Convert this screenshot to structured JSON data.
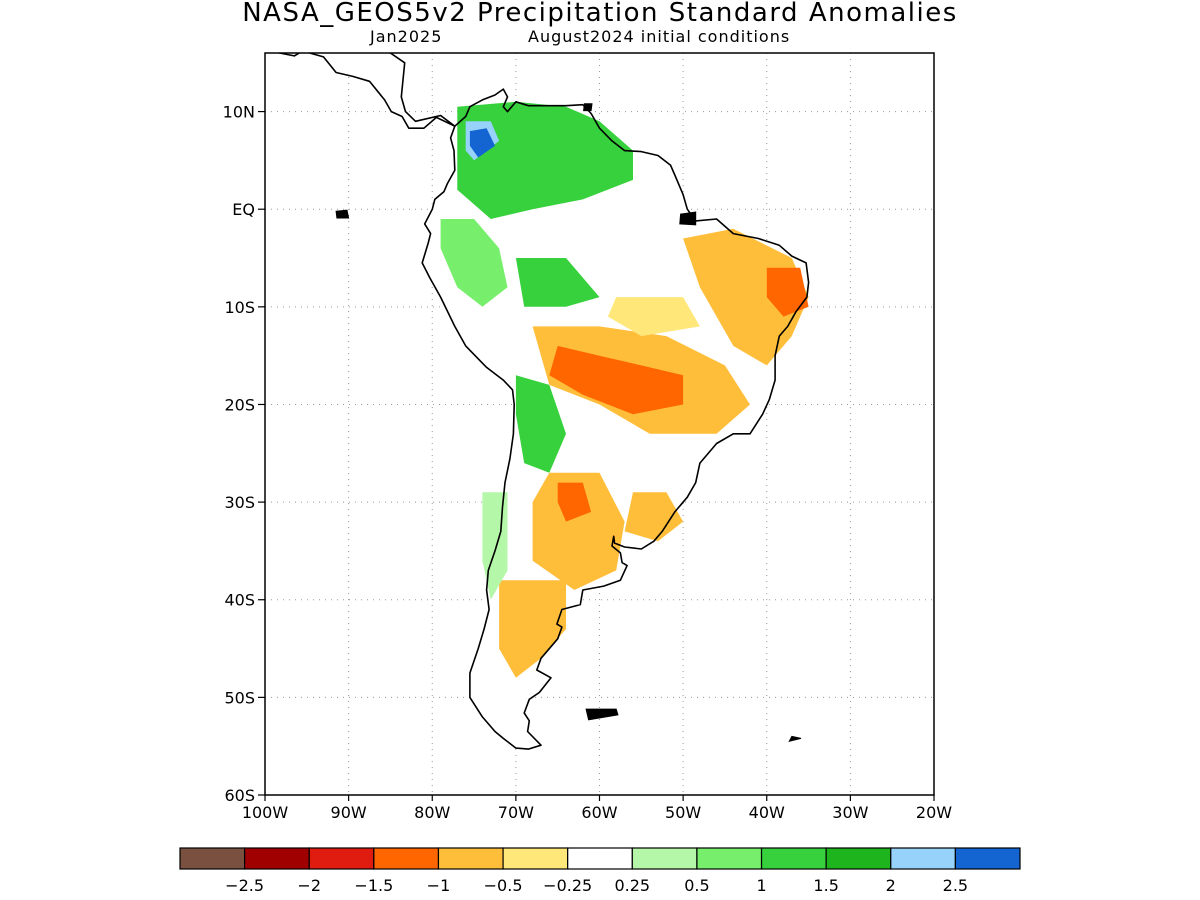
{
  "header": {
    "title": "NASA_GEOS5v2 Precipitation Standard Anomalies",
    "target_month": "Jan2025",
    "initial_conditions": "August2024 initial conditions"
  },
  "map": {
    "region": "South America",
    "lat_range": [
      -60,
      16
    ],
    "lon_range": [
      -100,
      -20
    ],
    "lat_ticks": [
      {
        "value": 10,
        "label": "10N"
      },
      {
        "value": 0,
        "label": "EQ"
      },
      {
        "value": -10,
        "label": "10S"
      },
      {
        "value": -20,
        "label": "20S"
      },
      {
        "value": -30,
        "label": "30S"
      },
      {
        "value": -40,
        "label": "40S"
      },
      {
        "value": -50,
        "label": "50S"
      },
      {
        "value": -60,
        "label": "60S"
      }
    ],
    "lon_ticks": [
      {
        "value": -100,
        "label": "100W"
      },
      {
        "value": -90,
        "label": "90W"
      },
      {
        "value": -80,
        "label": "80W"
      },
      {
        "value": -70,
        "label": "70W"
      },
      {
        "value": -60,
        "label": "60W"
      },
      {
        "value": -50,
        "label": "50W"
      },
      {
        "value": -40,
        "label": "40W"
      },
      {
        "value": -30,
        "label": "30W"
      },
      {
        "value": -20,
        "label": "20W"
      }
    ],
    "grid": "dotted"
  },
  "colorbar": {
    "colors": [
      "#7a5040",
      "#a00000",
      "#e01c10",
      "#ff6600",
      "#ffbe3a",
      "#ffe77a",
      "#ffffff",
      "#b4f7a8",
      "#78ef6c",
      "#36d13c",
      "#1eb41e",
      "#96d2fa",
      "#1464d2"
    ],
    "labels": [
      "−2.5",
      "−2",
      "−1.5",
      "−1",
      "−0.5",
      "−0.25",
      "0.25",
      "0.5",
      "1",
      "1.5",
      "2",
      "2.5"
    ]
  },
  "anomaly_regions": [
    {
      "name": "Colombia-Venezuela wet",
      "color": "#36d13c",
      "points": [
        [
          -77,
          10.5
        ],
        [
          -70,
          11
        ],
        [
          -64,
          10.5
        ],
        [
          -60,
          9
        ],
        [
          -56,
          6
        ],
        [
          -56,
          3
        ],
        [
          -62,
          1
        ],
        [
          -68,
          0
        ],
        [
          -73,
          -1
        ],
        [
          -77,
          2
        ]
      ]
    },
    {
      "name": "Colombia very wet",
      "color": "#96d2fa",
      "points": [
        [
          -76,
          9
        ],
        [
          -73,
          9
        ],
        [
          -72,
          7
        ],
        [
          -75,
          5
        ],
        [
          -76,
          6
        ]
      ]
    },
    {
      "name": "Colombia core",
      "color": "#1464d2",
      "points": [
        [
          -75.5,
          8
        ],
        [
          -73.5,
          8.3
        ],
        [
          -72.5,
          6.5
        ],
        [
          -74.5,
          5.3
        ],
        [
          -75.5,
          6.5
        ]
      ]
    },
    {
      "name": "Ecuador-Peru wet",
      "color": "#78ef6c",
      "points": [
        [
          -79,
          -1
        ],
        [
          -75,
          -1
        ],
        [
          -72,
          -4
        ],
        [
          -71,
          -8
        ],
        [
          -74,
          -10
        ],
        [
          -77,
          -8
        ],
        [
          -79,
          -4
        ]
      ]
    },
    {
      "name": "Western Amazon wet",
      "color": "#36d13c",
      "points": [
        [
          -70,
          -5
        ],
        [
          -64,
          -5
        ],
        [
          -60,
          -9
        ],
        [
          -64,
          -10
        ],
        [
          -69,
          -10
        ]
      ]
    },
    {
      "name": "Northeast Brazil dry",
      "color": "#ffbe3a",
      "points": [
        [
          -50,
          -3
        ],
        [
          -44,
          -2
        ],
        [
          -37,
          -5
        ],
        [
          -35,
          -9
        ],
        [
          -37,
          -13
        ],
        [
          -40,
          -16
        ],
        [
          -44,
          -14
        ],
        [
          -48,
          -8
        ]
      ]
    },
    {
      "name": "Northeast Brazil core",
      "color": "#ff6600",
      "points": [
        [
          -40,
          -6
        ],
        [
          -36,
          -6
        ],
        [
          -35,
          -10
        ],
        [
          -38,
          -11
        ],
        [
          -40,
          -9
        ]
      ]
    },
    {
      "name": "Central Brazil dry",
      "color": "#ffbe3a",
      "points": [
        [
          -68,
          -12
        ],
        [
          -60,
          -12
        ],
        [
          -52,
          -13
        ],
        [
          -45,
          -16
        ],
        [
          -42,
          -20
        ],
        [
          -46,
          -23
        ],
        [
          -54,
          -23
        ],
        [
          -60,
          -20
        ],
        [
          -66,
          -18
        ]
      ]
    },
    {
      "name": "Mato Grosso core",
      "color": "#ff6600",
      "points": [
        [
          -65,
          -14
        ],
        [
          -60,
          -15
        ],
        [
          -55,
          -16
        ],
        [
          -50,
          -17
        ],
        [
          -50,
          -20
        ],
        [
          -56,
          -21
        ],
        [
          -62,
          -19
        ],
        [
          -66,
          -17
        ]
      ]
    },
    {
      "name": "Southern Amazon moist",
      "color": "#ffe77a",
      "points": [
        [
          -58,
          -9
        ],
        [
          -50,
          -9
        ],
        [
          -48,
          -12
        ],
        [
          -55,
          -13
        ],
        [
          -59,
          -11
        ]
      ]
    },
    {
      "name": "Bolivia-Andes wet",
      "color": "#36d13c",
      "points": [
        [
          -70,
          -17
        ],
        [
          -66,
          -18
        ],
        [
          -64,
          -23
        ],
        [
          -66,
          -27
        ],
        [
          -69,
          -26
        ],
        [
          -70,
          -21
        ]
      ]
    },
    {
      "name": "Chaco dry",
      "color": "#ffbe3a",
      "points": [
        [
          -66,
          -27
        ],
        [
          -60,
          -27
        ],
        [
          -57,
          -32
        ],
        [
          -58,
          -37
        ],
        [
          -63,
          -39
        ],
        [
          -68,
          -36
        ],
        [
          -68,
          -30
        ]
      ]
    },
    {
      "name": "Chaco core",
      "color": "#ff6600",
      "points": [
        [
          -65,
          -28
        ],
        [
          -62,
          -28
        ],
        [
          -61,
          -31
        ],
        [
          -64,
          -32
        ],
        [
          -65,
          -30
        ]
      ]
    },
    {
      "name": "Uruguay dry",
      "color": "#ffbe3a",
      "points": [
        [
          -56,
          -29
        ],
        [
          -52,
          -29
        ],
        [
          -50,
          -32
        ],
        [
          -53,
          -34
        ],
        [
          -57,
          -33
        ]
      ]
    },
    {
      "name": "Patagonia dry",
      "color": "#ffbe3a",
      "points": [
        [
          -72,
          -38
        ],
        [
          -64,
          -38
        ],
        [
          -64,
          -43
        ],
        [
          -67,
          -46
        ],
        [
          -70,
          -48
        ],
        [
          -72,
          -45
        ]
      ]
    },
    {
      "name": "Southern Chile wet",
      "color": "#b4f7a8",
      "points": [
        [
          -74,
          -29
        ],
        [
          -71,
          -29
        ],
        [
          -71,
          -37
        ],
        [
          -73,
          -40
        ],
        [
          -74,
          -36
        ]
      ]
    }
  ],
  "land_outline": {
    "south_america": [
      [
        -77.3,
        8.5
      ],
      [
        -76,
        9.5
      ],
      [
        -75.5,
        10.5
      ],
      [
        -74,
        11.2
      ],
      [
        -72.5,
        11.7
      ],
      [
        -71.5,
        12.3
      ],
      [
        -71,
        11.5
      ],
      [
        -71.5,
        10.5
      ],
      [
        -71,
        10
      ],
      [
        -70,
        11
      ],
      [
        -68.5,
        10.6
      ],
      [
        -66,
        10.6
      ],
      [
        -64,
        10.6
      ],
      [
        -62,
        10.7
      ],
      [
        -61,
        9.8
      ],
      [
        -60,
        8.3
      ],
      [
        -58.5,
        7
      ],
      [
        -57,
        6
      ],
      [
        -55,
        5.9
      ],
      [
        -53,
        5.5
      ],
      [
        -51.5,
        4.5
      ],
      [
        -51,
        3.5
      ],
      [
        -50,
        1.5
      ],
      [
        -49.5,
        0
      ],
      [
        -48.5,
        -1.2
      ],
      [
        -46,
        -1
      ],
      [
        -44,
        -2.5
      ],
      [
        -41,
        -3
      ],
      [
        -38.5,
        -3.7
      ],
      [
        -37,
        -4.8
      ],
      [
        -35.3,
        -5.5
      ],
      [
        -35,
        -7.5
      ],
      [
        -35.2,
        -9
      ],
      [
        -36.5,
        -10.5
      ],
      [
        -37.5,
        -12
      ],
      [
        -38.5,
        -13
      ],
      [
        -39,
        -15
      ],
      [
        -39,
        -17.5
      ],
      [
        -39.7,
        -19.5
      ],
      [
        -40.5,
        -21
      ],
      [
        -42,
        -23
      ],
      [
        -44,
        -23
      ],
      [
        -46,
        -24
      ],
      [
        -48,
        -26
      ],
      [
        -48.5,
        -28
      ],
      [
        -49.5,
        -29.5
      ],
      [
        -51,
        -31
      ],
      [
        -52.5,
        -33
      ],
      [
        -53.5,
        -34
      ],
      [
        -55,
        -34.8
      ],
      [
        -57,
        -34.6
      ],
      [
        -58.2,
        -34.2
      ],
      [
        -58.3,
        -33.5
      ],
      [
        -58.5,
        -34.5
      ],
      [
        -57.5,
        -35.2
      ],
      [
        -57.3,
        -36.2
      ],
      [
        -56.7,
        -36.5
      ],
      [
        -57.5,
        -38
      ],
      [
        -59.5,
        -38.6
      ],
      [
        -62,
        -39
      ],
      [
        -62.3,
        -40.5
      ],
      [
        -64.5,
        -41
      ],
      [
        -65.1,
        -42.5
      ],
      [
        -64.5,
        -42.8
      ],
      [
        -65,
        -44
      ],
      [
        -67,
        -46
      ],
      [
        -67.5,
        -47.2
      ],
      [
        -65.8,
        -48
      ],
      [
        -67.2,
        -49.5
      ],
      [
        -68.4,
        -50.2
      ],
      [
        -69,
        -51.6
      ],
      [
        -68.4,
        -52.4
      ],
      [
        -68.6,
        -53.5
      ],
      [
        -67,
        -54.9
      ],
      [
        -68.5,
        -55.3
      ],
      [
        -70,
        -55.2
      ],
      [
        -71.5,
        -54.2
      ],
      [
        -72.5,
        -53.5
      ],
      [
        -74,
        -52
      ],
      [
        -75.5,
        -50
      ],
      [
        -75.5,
        -47.5
      ],
      [
        -74.5,
        -45
      ],
      [
        -73.8,
        -43
      ],
      [
        -73.2,
        -41
      ],
      [
        -73.5,
        -39
      ],
      [
        -73.3,
        -37
      ],
      [
        -72.5,
        -35
      ],
      [
        -71.8,
        -33
      ],
      [
        -71.6,
        -30.5
      ],
      [
        -71.3,
        -28
      ],
      [
        -70.7,
        -25.5
      ],
      [
        -70.3,
        -23
      ],
      [
        -70.2,
        -20
      ],
      [
        -70.4,
        -18.5
      ],
      [
        -71.5,
        -17.5
      ],
      [
        -73.5,
        -16.2
      ],
      [
        -76,
        -14
      ],
      [
        -77.3,
        -12
      ],
      [
        -79,
        -9
      ],
      [
        -80.3,
        -7
      ],
      [
        -81.2,
        -5.5
      ],
      [
        -80.5,
        -3.5
      ],
      [
        -80.2,
        -2.5
      ],
      [
        -80.9,
        -1.5
      ],
      [
        -80,
        0
      ],
      [
        -79.7,
        1
      ],
      [
        -78.6,
        1.8
      ],
      [
        -78.2,
        2.6
      ],
      [
        -77.3,
        4
      ],
      [
        -77.4,
        6
      ],
      [
        -77.8,
        7.3
      ]
    ],
    "central_america": [
      [
        -77.3,
        8.5
      ],
      [
        -79.5,
        9.4
      ],
      [
        -81,
        8.3
      ],
      [
        -82.8,
        8.3
      ],
      [
        -83.6,
        9.5
      ],
      [
        -84.9,
        10
      ],
      [
        -85.7,
        11.2
      ],
      [
        -87.5,
        13.1
      ],
      [
        -89.5,
        13.6
      ],
      [
        -91.5,
        14
      ],
      [
        -93,
        15.6
      ],
      [
        -95.5,
        16.2
      ],
      [
        -96.5,
        15.7
      ],
      [
        -100,
        16.3
      ],
      [
        -100,
        18.5
      ],
      [
        -90,
        17.5
      ],
      [
        -88.5,
        16.5
      ],
      [
        -85,
        16
      ],
      [
        -83.3,
        15
      ],
      [
        -83.7,
        11.5
      ],
      [
        -83.2,
        10
      ],
      [
        -82,
        9
      ],
      [
        -79,
        9.6
      ]
    ],
    "islands": [
      [
        [
          -61.8,
          10.8
        ],
        [
          -60.9,
          10.8
        ],
        [
          -61,
          10.1
        ],
        [
          -61.9,
          10.1
        ]
      ],
      [
        [
          -61.6,
          -51.2
        ],
        [
          -58,
          -51.2
        ],
        [
          -57.8,
          -51.8
        ],
        [
          -61.3,
          -52.3
        ]
      ],
      [
        [
          -91.5,
          -0.2
        ],
        [
          -90.2,
          -0.1
        ],
        [
          -90,
          -0.9
        ],
        [
          -91.4,
          -0.9
        ]
      ],
      [
        [
          -50.3,
          -0.5
        ],
        [
          -48.5,
          -0.3
        ],
        [
          -48.5,
          -1.6
        ],
        [
          -50.4,
          -1.5
        ]
      ],
      [
        [
          -37,
          -54
        ],
        [
          -35.9,
          -54.2
        ],
        [
          -37.3,
          -54.5
        ]
      ]
    ]
  }
}
